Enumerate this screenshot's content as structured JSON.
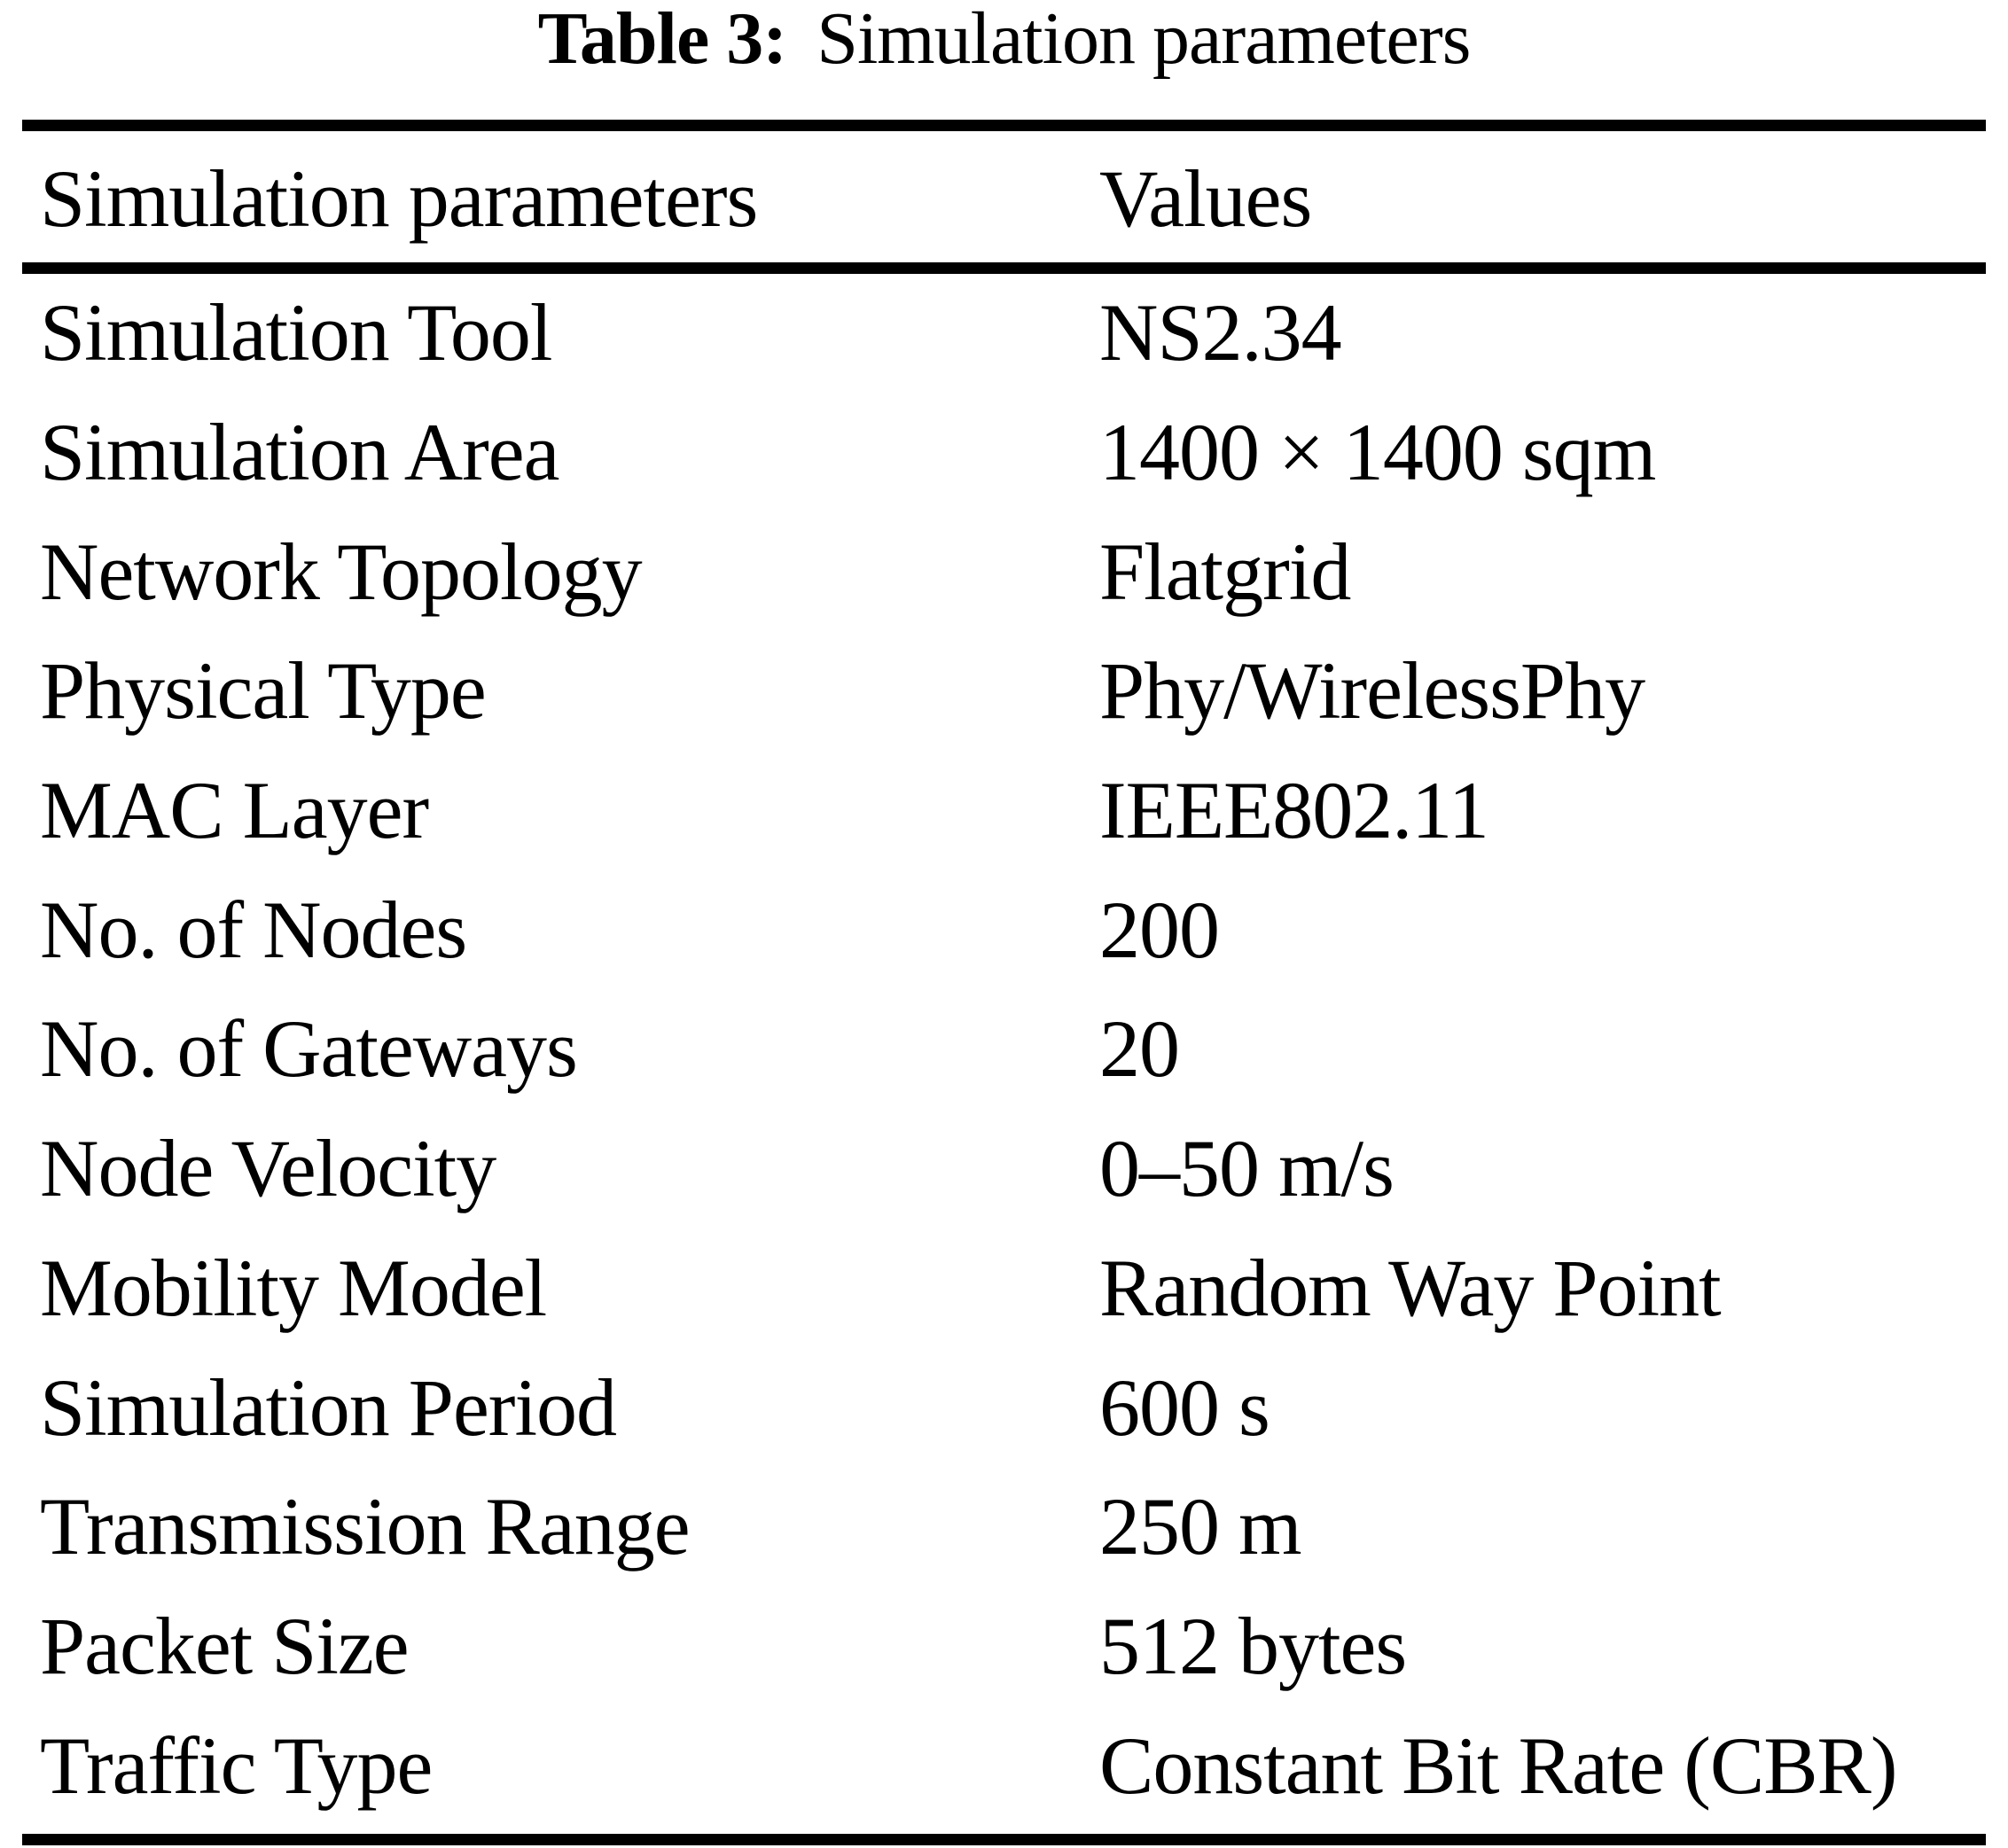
{
  "table": {
    "caption_label": "Table 3:",
    "caption_text": "Simulation parameters",
    "columns": [
      "Simulation parameters",
      "Values"
    ],
    "rows": [
      {
        "param": "Simulation Tool",
        "value": "NS2.34"
      },
      {
        "param": "Simulation Area",
        "value": "1400 × 1400 sqm"
      },
      {
        "param": "Network Topology",
        "value": "Flatgrid"
      },
      {
        "param": "Physical Type",
        "value": "Phy/WirelessPhy"
      },
      {
        "param": "MAC Layer",
        "value": "IEEE802.11"
      },
      {
        "param": "No. of Nodes",
        "value": "200"
      },
      {
        "param": "No. of Gateways",
        "value": "20"
      },
      {
        "param": "Node Velocity",
        "value": "0–50 m/s"
      },
      {
        "param": "Mobility Model",
        "value": "Random Way Point"
      },
      {
        "param": "Simulation Period",
        "value": "600 s"
      },
      {
        "param": "Transmission Range",
        "value": "250 m"
      },
      {
        "param": "Packet Size",
        "value": "512 bytes"
      },
      {
        "param": "Traffic Type",
        "value": "Constant Bit Rate (CBR)"
      }
    ]
  }
}
